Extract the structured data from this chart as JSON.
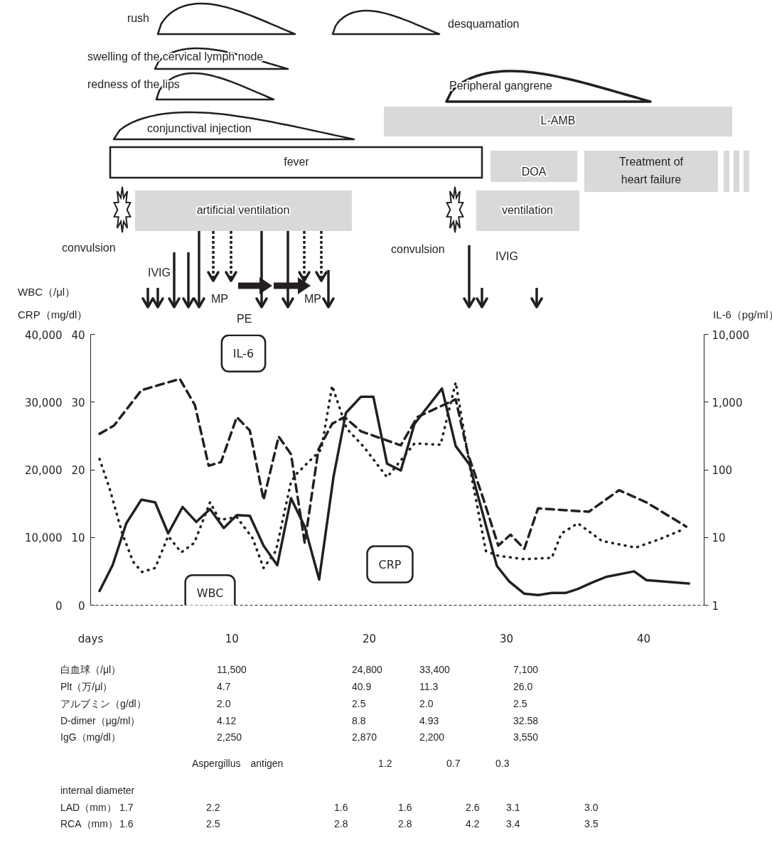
{
  "chart_data": {
    "type": "line",
    "xlabel": "days",
    "ylabel": "WBC（/μl）",
    "y3label": "CRP（mg/dl）",
    "y2label": "IL-6（pg/ml）",
    "xlim": [
      -0.3,
      44.4
    ],
    "xticks": [
      10,
      20,
      30,
      40
    ],
    "ylim": [
      0,
      40000
    ],
    "yticks": [
      {
        "value": 0,
        "label": "0"
      },
      {
        "value": 10000,
        "label": "10,000"
      },
      {
        "value": 20000,
        "label": "20,000"
      },
      {
        "value": 30000,
        "label": "30,000"
      },
      {
        "value": 40000,
        "label": "40,000"
      }
    ],
    "y3lim": [
      0,
      40
    ],
    "y3ticks": [
      0,
      10,
      20,
      30,
      40
    ],
    "y2lim": [
      1,
      10000
    ],
    "y2ticks": [
      1,
      10,
      100,
      {
        "value": 1000,
        "label": "1,000"
      },
      {
        "value": 10000,
        "label": "10,000"
      }
    ],
    "log": "y2",
    "series": [
      {
        "name": "WBC",
        "color": "#231f20",
        "line_style": "dotted",
        "axis": "y",
        "x": [
          0.35,
          1.1,
          2.0,
          2.8,
          3.45,
          4.4,
          5.35,
          6.3,
          7.25,
          8.4,
          9.1,
          10.35,
          11.5,
          12.3,
          13.2,
          14.3,
          14.7,
          16.5,
          17.3,
          18.35,
          19.6,
          21.3,
          23.3,
          25.2,
          26.3,
          27.5,
          28.5,
          29.4,
          31.3,
          33.3,
          34.0,
          35.2,
          36.95,
          39.4,
          41.1,
          43.0
        ],
        "values": [
          21600,
          17100,
          10600,
          6400,
          4900,
          5500,
          10200,
          7800,
          9200,
          15200,
          12600,
          13000,
          9900,
          5500,
          8000,
          18200,
          19400,
          23000,
          32400,
          26100,
          23400,
          18900,
          23900,
          23700,
          32900,
          18500,
          8000,
          7300,
          6800,
          7000,
          10600,
          12100,
          9500,
          8500,
          9700,
          11300
        ]
      },
      {
        "name": "CRP",
        "color": "#231f20",
        "line_style": "solid",
        "axis": "y3",
        "x": [
          0.35,
          1.3,
          2.3,
          3.4,
          4.4,
          5.35,
          6.4,
          7.4,
          8.4,
          9.4,
          10.35,
          11.3,
          12.3,
          13.3,
          14.3,
          15.3,
          16.35,
          17.4,
          18.3,
          19.4,
          20.3,
          21.3,
          22.3,
          23.3,
          25.3,
          26.3,
          27.3,
          29.3,
          30.2,
          31.3,
          32.3,
          33.3,
          34.3,
          35.2,
          36.3,
          37.3,
          39.3,
          40.2,
          43.3
        ],
        "values": [
          2.1,
          5.9,
          12.1,
          15.6,
          15.2,
          10.6,
          14.5,
          12.3,
          14.2,
          11.4,
          13.3,
          13.2,
          8.8,
          5.9,
          15.8,
          11.6,
          3.8,
          19.0,
          28.4,
          30.8,
          30.8,
          20.9,
          19.9,
          26.8,
          32.0,
          23.5,
          20.8,
          5.8,
          3.5,
          1.7,
          1.5,
          1.8,
          1.8,
          2.4,
          3.4,
          4.2,
          5.0,
          3.7,
          3.2
        ]
      },
      {
        "name": "IL-6",
        "color": "#231f20",
        "line_style": "dashed",
        "axis": "y2",
        "x": [
          0.35,
          1.4,
          3.4,
          6.2,
          7.3,
          8.3,
          9.2,
          10.35,
          11.3,
          12.3,
          13.4,
          14.3,
          15.3,
          16.3,
          17.3,
          18.2,
          19.4,
          22.3,
          23.5,
          26.3,
          27.2,
          28.3,
          29.4,
          30.3,
          31.3,
          32.3,
          36.0,
          38.2,
          40.2,
          43.1
        ],
        "values": [
          340,
          450,
          1500,
          2200,
          900,
          115,
          130,
          600,
          380,
          36,
          310,
          170,
          8.3,
          200,
          480,
          600,
          370,
          230,
          600,
          1100,
          170,
          38,
          7.6,
          11,
          6.8,
          27,
          24,
          50,
          33,
          14.5
        ]
      }
    ],
    "annotations": [
      "rush",
      "desquamation",
      "swelling of the cervical lymph node",
      "redness of the lips",
      "Peripheral gangrene",
      "L-AMB",
      "conjunctival injection",
      "fever",
      "DOA",
      "Treatment of\nheart failure",
      "artificial ventilation",
      "ventilation",
      "IVIG",
      "MP",
      "PE",
      "MP",
      "IVIG",
      "convulsion",
      "convulsion",
      "白血球（/μl）",
      "11,500",
      "24,800",
      "33,400",
      "7,100",
      "Plt（万/μl）",
      "4.7",
      "40.9",
      "11.3",
      "26.0",
      "アルブミン（g/dl）",
      "2.0",
      "2.5",
      "2.0",
      "2.5",
      "D-dimer（μg/ml）",
      "4.12",
      "8.8",
      "4.93",
      "32.58",
      "IgG（mg/dl）",
      "2,250",
      "2,870",
      "2,200",
      "3,550",
      "Aspergillus　antigen",
      "1.2",
      "0.7",
      "0.3",
      "internal diameter",
      "LAD（mm）",
      "1.7",
      "2.2",
      "1.6",
      "1.6",
      "2.6",
      "3.1",
      "3.0",
      "RCA（mm）",
      "1.6",
      "2.5",
      "2.8",
      "2.8",
      "4.2",
      "3.4",
      "3.5"
    ]
  }
}
